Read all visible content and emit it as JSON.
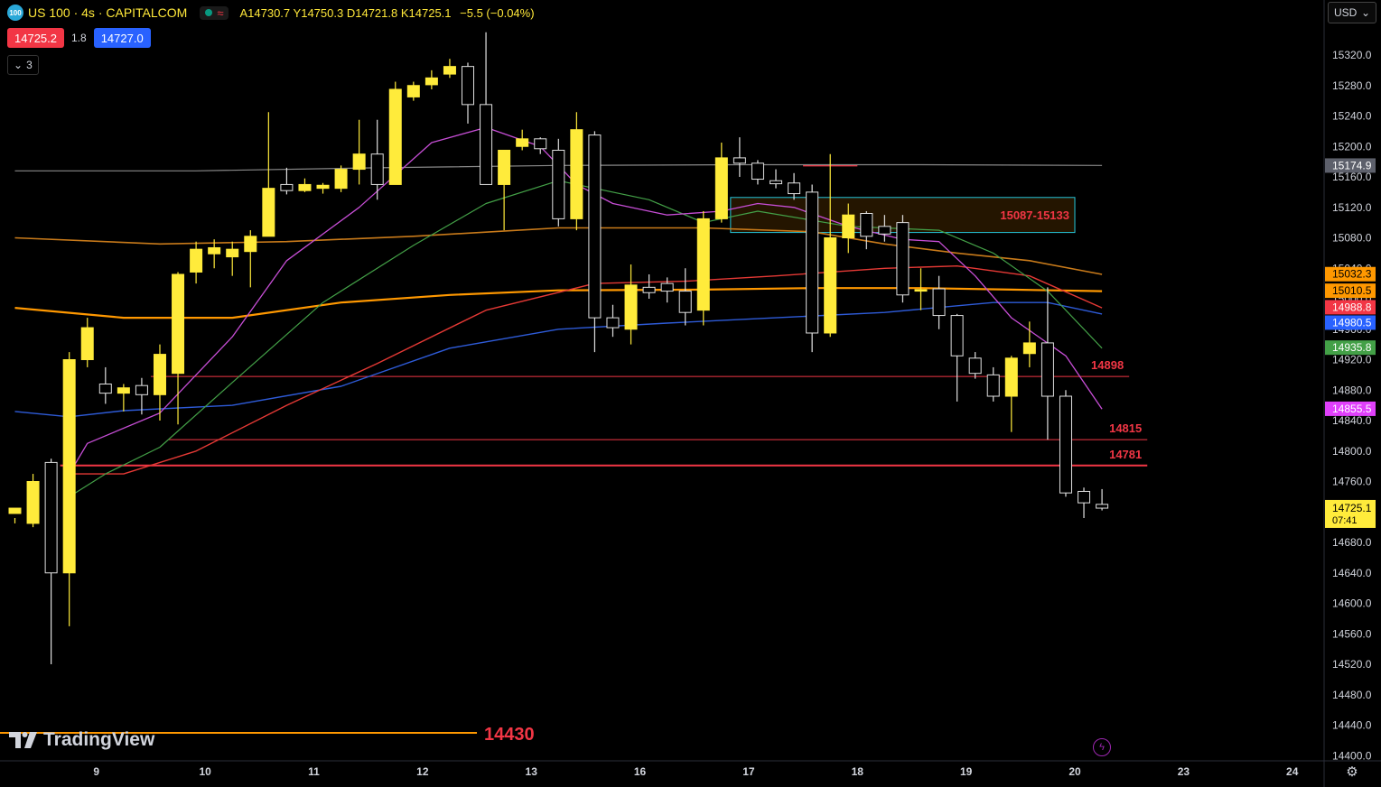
{
  "header": {
    "symbol_badge": "100",
    "title": "US 100 · 4s · CAPITALCOM",
    "ohlc": {
      "o": "A14730.7",
      "h": "Y14750.3",
      "l": "D14721.8",
      "c": "K14725.1",
      "change": "−5.5 (−0.04%)"
    },
    "sell_price": "14725.2",
    "spread": "1.8",
    "buy_price": "14727.0",
    "indicators_count": "3",
    "currency": "USD"
  },
  "brand": {
    "name": "TradingView"
  },
  "colors": {
    "bull": "#ffeb3b",
    "bear_fill": "#000000",
    "bear_stroke": "#e0e0e0",
    "ema_magenta": "#c74ed6",
    "ema_green": "#43a047",
    "ema_red": "#e53935",
    "ema_blue": "#2e5bd8",
    "ema_orange": "#ff9800",
    "ema_brown": "#c87a1a",
    "ema_gray": "#888888"
  },
  "chart_data": {
    "type": "candlestick",
    "ylim": [
      14400,
      15340
    ],
    "y_ticks": [
      "15320.0",
      "15280.0",
      "15240.0",
      "15200.0",
      "15160.0",
      "15120.0",
      "15080.0",
      "15040.0",
      "15000.0",
      "14960.0",
      "14920.0",
      "14880.0",
      "14840.0",
      "14800.0",
      "14760.0",
      "14720.0",
      "14680.0",
      "14640.0",
      "14600.0",
      "14560.0",
      "14520.0",
      "14480.0",
      "14440.0",
      "14400.0"
    ],
    "x_ticks": [
      {
        "label": "9",
        "i": 4.5
      },
      {
        "label": "10",
        "i": 10.5
      },
      {
        "label": "11",
        "i": 16.5
      },
      {
        "label": "12",
        "i": 22.5
      },
      {
        "label": "13",
        "i": 28.5
      },
      {
        "label": "16",
        "i": 34.5
      },
      {
        "label": "17",
        "i": 40.5
      },
      {
        "label": "18",
        "i": 46.5
      },
      {
        "label": "19",
        "i": 52.5
      },
      {
        "label": "20",
        "i": 58.5
      },
      {
        "label": "23",
        "i": 64.5
      },
      {
        "label": "24",
        "i": 70.5
      }
    ],
    "candles": [
      [
        14718,
        14725,
        14712,
        14705
      ],
      [
        14705,
        14760,
        14770,
        14700
      ],
      [
        14785,
        14640,
        14790,
        14520
      ],
      [
        14640,
        14920,
        14930,
        14570
      ],
      [
        14920,
        14962,
        14975,
        14910
      ],
      [
        14888,
        14876,
        14910,
        14862
      ],
      [
        14876,
        14883,
        14888,
        14852
      ],
      [
        14886,
        14874,
        14896,
        14848
      ],
      [
        14874,
        14927,
        14940,
        14840
      ],
      [
        14902,
        15032,
        15035,
        14835
      ],
      [
        15035,
        15065,
        15075,
        15020
      ],
      [
        15059,
        15067,
        15078,
        15040
      ],
      [
        15055,
        15065,
        15075,
        15030
      ],
      [
        15062,
        15082,
        15090,
        15015
      ],
      [
        15082,
        15145,
        15245,
        15082
      ],
      [
        15150,
        15142,
        15172,
        15137
      ],
      [
        15142,
        15150,
        15158,
        15140
      ],
      [
        15145,
        15149,
        15152,
        15138
      ],
      [
        15145,
        15170,
        15175,
        15140
      ],
      [
        15170,
        15190,
        15235,
        15150
      ],
      [
        15190,
        15150,
        15235,
        15130
      ],
      [
        15150,
        15275,
        15285,
        15150
      ],
      [
        15265,
        15280,
        15285,
        15260
      ],
      [
        15281,
        15290,
        15300,
        15275
      ],
      [
        15295,
        15305,
        15315,
        15290
      ],
      [
        15305,
        15255,
        15310,
        15230
      ],
      [
        15255,
        15150,
        15350,
        15150
      ],
      [
        15150,
        15195,
        15195,
        15090
      ],
      [
        15200,
        15210,
        15222,
        15195
      ],
      [
        15210,
        15197,
        15212,
        15190
      ],
      [
        15195,
        15105,
        15210,
        15095
      ],
      [
        15105,
        15222,
        15245,
        15090
      ],
      [
        15215,
        14975,
        15220,
        14930
      ],
      [
        14975,
        14962,
        14992,
        14950
      ],
      [
        14960,
        15018,
        15045,
        14940
      ],
      [
        15015,
        15008,
        15032,
        15000
      ],
      [
        15020,
        15010,
        15028,
        14995
      ],
      [
        15010,
        14982,
        15040,
        14965
      ],
      [
        14985,
        15105,
        15115,
        14965
      ],
      [
        15105,
        15185,
        15205,
        15100
      ],
      [
        15185,
        15178,
        15212,
        15160
      ],
      [
        15178,
        15157,
        15182,
        15150
      ],
      [
        15155,
        15151,
        15170,
        15145
      ],
      [
        15152,
        15138,
        15165,
        15130
      ],
      [
        15140,
        14955,
        15150,
        14930
      ],
      [
        14955,
        15080,
        15190,
        14950
      ],
      [
        15080,
        15110,
        15125,
        15060
      ],
      [
        15112,
        15082,
        15115,
        15065
      ],
      [
        15095,
        15085,
        15110,
        15075
      ],
      [
        15100,
        15005,
        15110,
        14995
      ],
      [
        15010,
        15012,
        15040,
        14985
      ],
      [
        15013,
        14978,
        15030,
        14960
      ],
      [
        14978,
        14925,
        14980,
        14865
      ],
      [
        14922,
        14902,
        14930,
        14895
      ],
      [
        14900,
        14872,
        14910,
        14865
      ],
      [
        14872,
        14922,
        14925,
        14825
      ],
      [
        14928,
        14942,
        14970,
        14910
      ],
      [
        14942,
        14872,
        15015,
        14815
      ],
      [
        14872,
        14745,
        14880,
        14740
      ],
      [
        14747,
        14732,
        14752,
        14712
      ],
      [
        14730,
        14725,
        14750,
        14722
      ]
    ],
    "lines": [
      {
        "color": "#888888",
        "width": 1.2,
        "values": [
          [
            0,
            15168
          ],
          [
            10,
            15168
          ],
          [
            20,
            15172
          ],
          [
            30,
            15175
          ],
          [
            40,
            15176
          ],
          [
            50,
            15176
          ],
          [
            60,
            15175
          ]
        ]
      },
      {
        "color": "#c87a1a",
        "width": 1.6,
        "values": [
          [
            0,
            15080
          ],
          [
            8,
            15072
          ],
          [
            15,
            15075
          ],
          [
            22,
            15082
          ],
          [
            30,
            15093
          ],
          [
            38,
            15093
          ],
          [
            44,
            15088
          ],
          [
            48,
            15072
          ],
          [
            52,
            15060
          ],
          [
            56,
            15050
          ],
          [
            60,
            15032
          ]
        ]
      },
      {
        "color": "#ff9800",
        "width": 2.2,
        "values": [
          [
            0,
            14988
          ],
          [
            6,
            14975
          ],
          [
            12,
            14975
          ],
          [
            18,
            14995
          ],
          [
            24,
            15005
          ],
          [
            30,
            15011
          ],
          [
            38,
            15012
          ],
          [
            44,
            15014
          ],
          [
            50,
            15014
          ],
          [
            55,
            15012
          ],
          [
            60,
            15010
          ]
        ]
      },
      {
        "color": "#2e5bd8",
        "width": 1.4,
        "values": [
          [
            0,
            14852
          ],
          [
            3,
            14845
          ],
          [
            6,
            14853
          ],
          [
            12,
            14860
          ],
          [
            18,
            14885
          ],
          [
            24,
            14935
          ],
          [
            30,
            14960
          ],
          [
            36,
            14968
          ],
          [
            42,
            14975
          ],
          [
            48,
            14982
          ],
          [
            54,
            14995
          ],
          [
            57,
            14995
          ],
          [
            60,
            14980
          ]
        ]
      },
      {
        "color": "#e53935",
        "width": 1.4,
        "values": [
          [
            3,
            14770
          ],
          [
            6,
            14770
          ],
          [
            10,
            14800
          ],
          [
            15,
            14860
          ],
          [
            20,
            14915
          ],
          [
            26,
            14985
          ],
          [
            32,
            15020
          ],
          [
            37,
            15023
          ],
          [
            42,
            15030
          ],
          [
            48,
            15040
          ],
          [
            52,
            15043
          ],
          [
            56,
            15030
          ],
          [
            60,
            14988
          ]
        ]
      },
      {
        "color": "#43a047",
        "width": 1.2,
        "values": [
          [
            3,
            14740
          ],
          [
            5,
            14770
          ],
          [
            8,
            14805
          ],
          [
            12,
            14890
          ],
          [
            17,
            14995
          ],
          [
            22,
            15070
          ],
          [
            26,
            15125
          ],
          [
            30,
            15155
          ],
          [
            35,
            15130
          ],
          [
            38,
            15100
          ],
          [
            41,
            15115
          ],
          [
            46,
            15095
          ],
          [
            51,
            15090
          ],
          [
            54,
            15060
          ],
          [
            57,
            15010
          ],
          [
            60,
            14935
          ]
        ]
      },
      {
        "color": "#c74ed6",
        "width": 1.3,
        "values": [
          [
            3,
            14770
          ],
          [
            4,
            14810
          ],
          [
            8,
            14850
          ],
          [
            12,
            14950
          ],
          [
            15,
            15050
          ],
          [
            19,
            15120
          ],
          [
            23,
            15205
          ],
          [
            26,
            15225
          ],
          [
            29,
            15200
          ],
          [
            31,
            15150
          ],
          [
            33,
            15125
          ],
          [
            36,
            15110
          ],
          [
            39,
            15115
          ],
          [
            41,
            15125
          ],
          [
            43,
            15120
          ],
          [
            46,
            15095
          ],
          [
            49,
            15078
          ],
          [
            51,
            15075
          ],
          [
            53,
            15030
          ],
          [
            55,
            14975
          ],
          [
            58,
            14925
          ],
          [
            60,
            14855
          ]
        ]
      }
    ],
    "levels": [
      {
        "y": 14898,
        "x_start": 7.5,
        "x_end": 61.5,
        "color": "#f23645",
        "width": 1,
        "label": "14898"
      },
      {
        "y": 14815,
        "x_start": 8.5,
        "x_end": 62.5,
        "color": "#f23645",
        "width": 1,
        "label": "14815"
      },
      {
        "y": 14781,
        "x_start": 2.5,
        "x_end": 62.5,
        "color": "#f23645",
        "width": 2,
        "label": "14781"
      },
      {
        "y": 14430,
        "x_start": -1,
        "x_end": 25.5,
        "color": "#ff9800",
        "width": 2,
        "label": "14430"
      },
      {
        "y": 15175,
        "x_start": 43.5,
        "x_end": 46.5,
        "color": "#f23645",
        "width": 2,
        "label": ""
      }
    ],
    "zone": {
      "x_start": 39.5,
      "x_end": 58.5,
      "y_low": 15087,
      "y_high": 15133,
      "label": "15087-15133"
    },
    "price_tags": [
      {
        "value": "15174.9",
        "y": 15174.9,
        "bg": "#5d606b",
        "fg": "#ffffff"
      },
      {
        "value": "15032.3",
        "y": 15032.3,
        "bg": "#ff9800",
        "fg": "#000000"
      },
      {
        "value": "15010.5",
        "y": 15010.5,
        "bg": "#ff9800",
        "fg": "#000000"
      },
      {
        "value": "14988.8",
        "y": 14988.8,
        "bg": "#f23645",
        "fg": "#ffffff"
      },
      {
        "value": "14980.5",
        "y": 14980.5,
        "bg": "#2962ff",
        "fg": "#ffffff"
      },
      {
        "value": "14935.8",
        "y": 14935.8,
        "bg": "#43a047",
        "fg": "#ffffff"
      },
      {
        "value": "14855.5",
        "y": 14855.5,
        "bg": "#e040fb",
        "fg": "#ffffff"
      }
    ],
    "last_price": {
      "value": "14725.1",
      "countdown": "07:41",
      "y": 14725.1
    }
  }
}
